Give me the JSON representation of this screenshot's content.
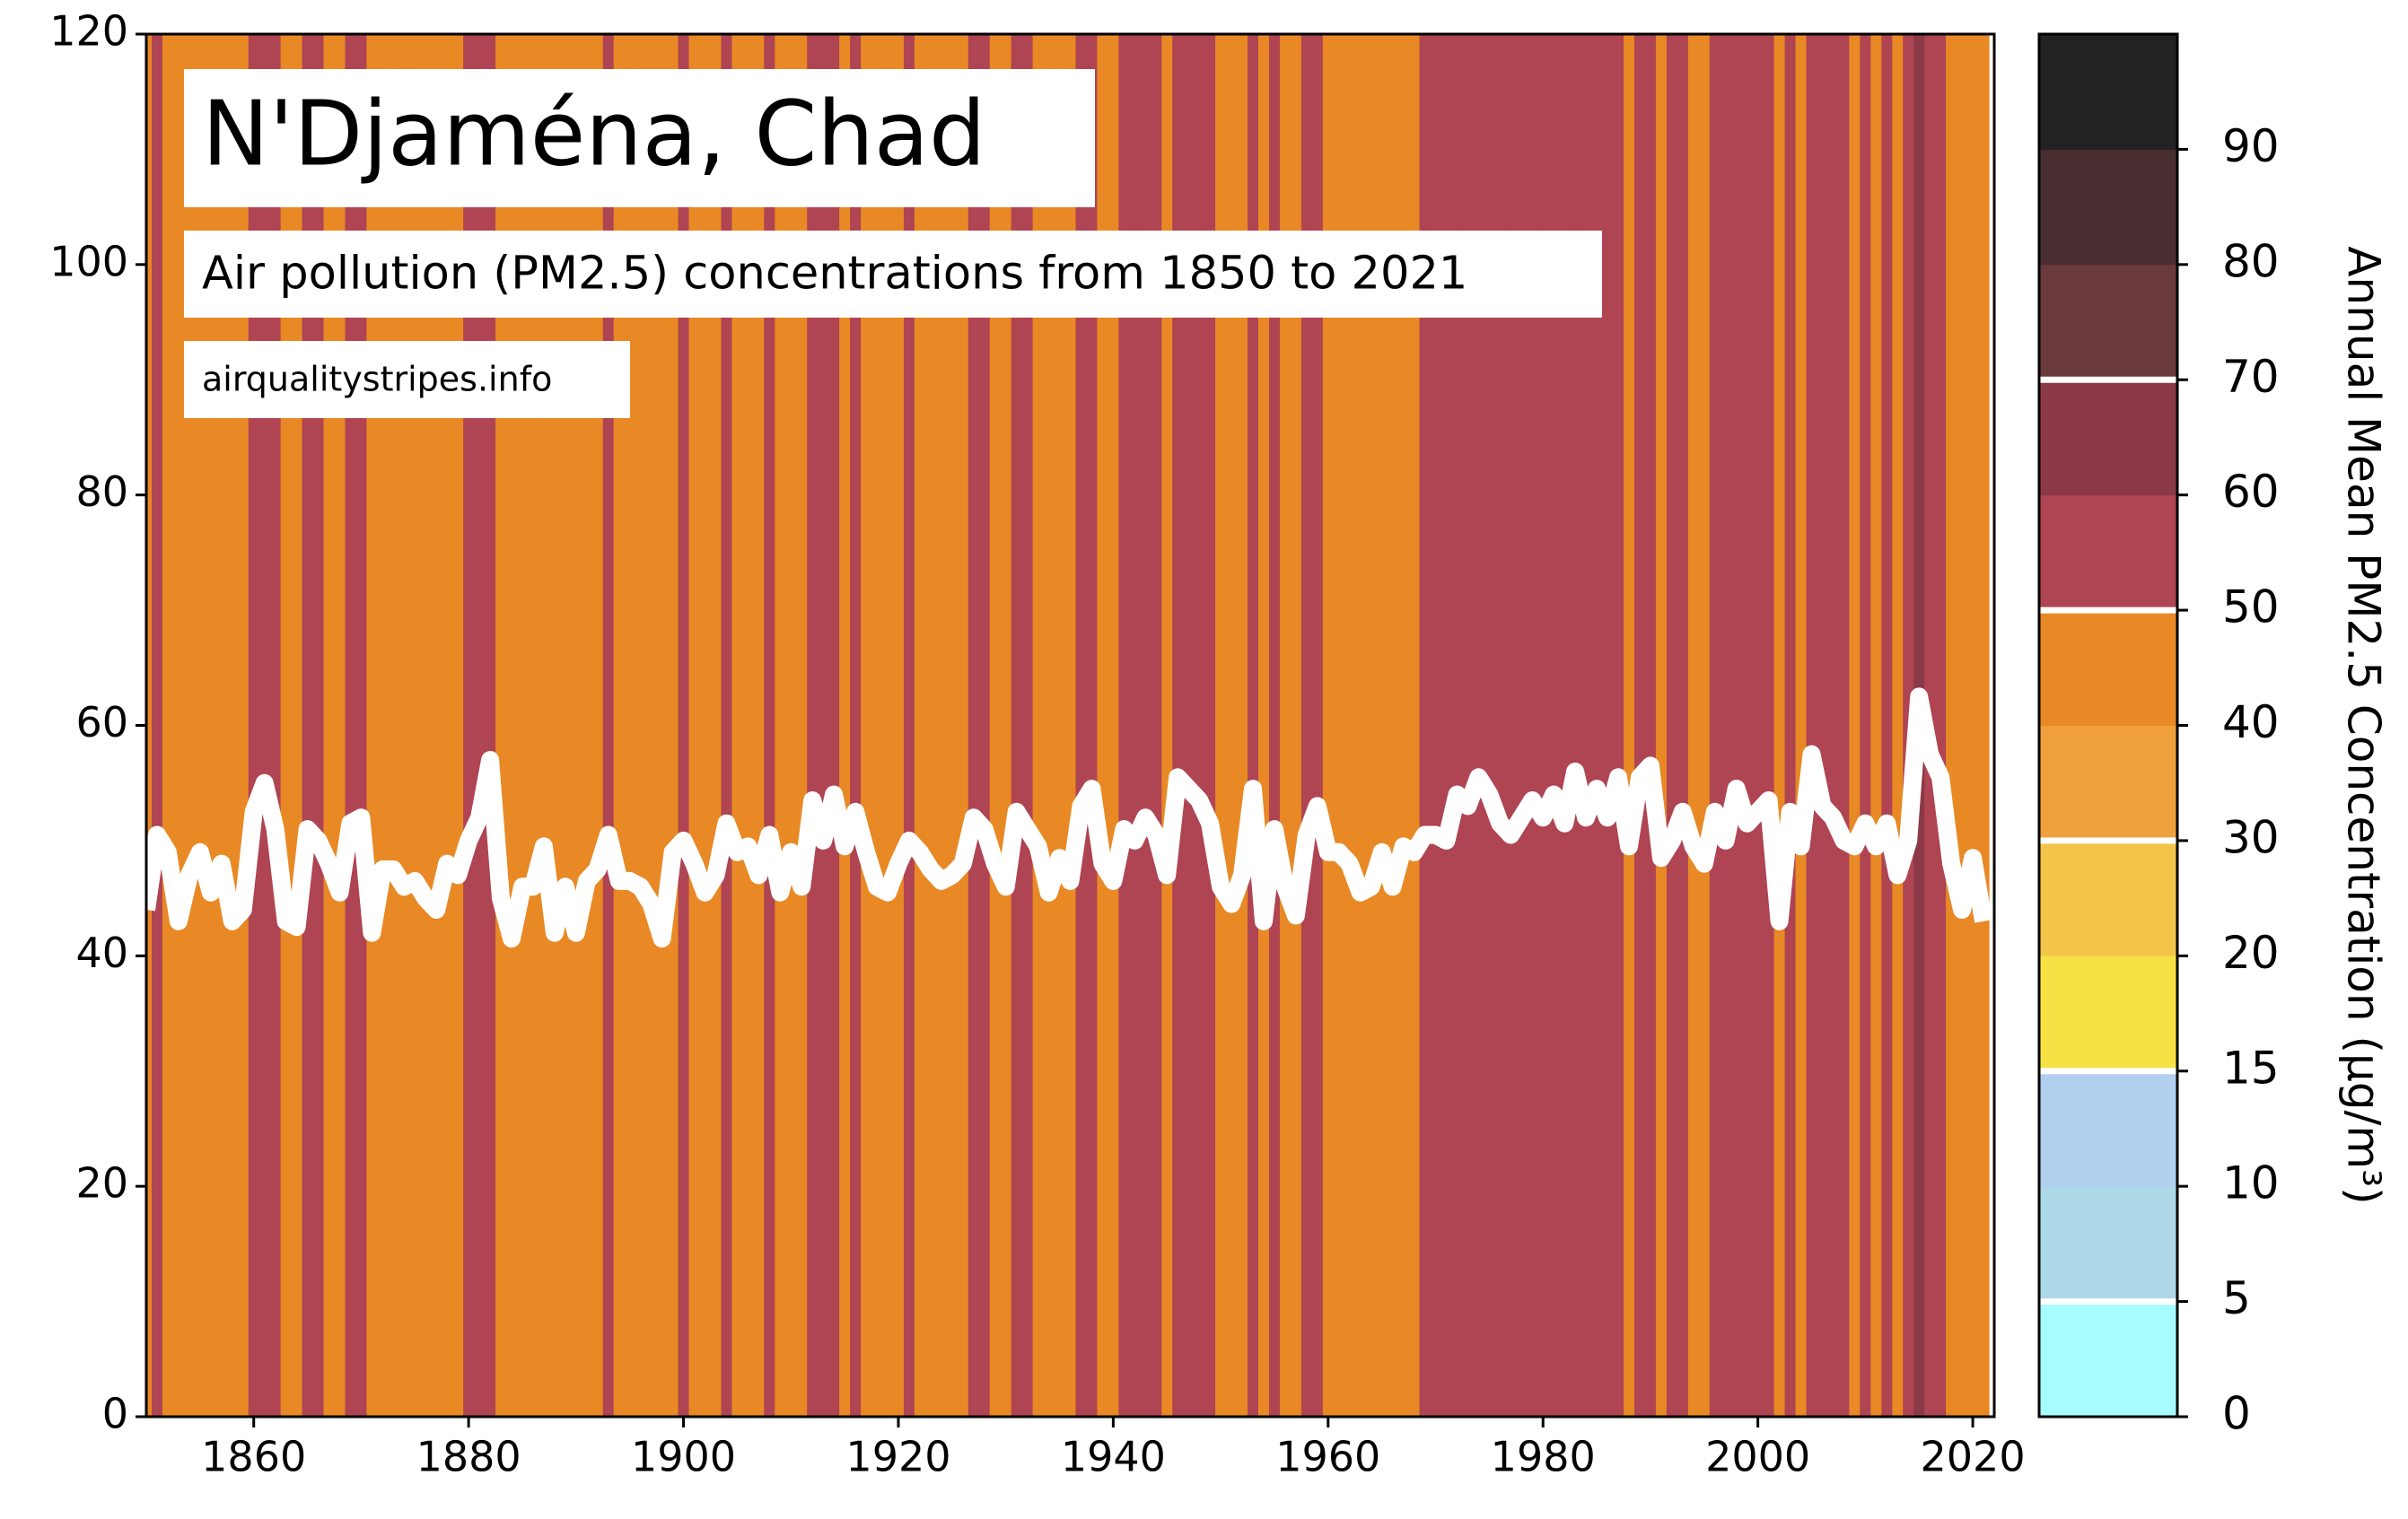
{
  "chart_data": {
    "type": "stripes",
    "title": "N'Djaména, Chad",
    "subtitle": "Air pollution (PM2.5) concentrations from 1850 to 2021",
    "source": "airqualitystripes.info",
    "colorbar_label": "Annual Mean PM2.5 Concentration (µg/m³)",
    "x": [
      1850,
      1851,
      1852,
      1853,
      1854,
      1855,
      1856,
      1857,
      1858,
      1859,
      1860,
      1861,
      1862,
      1863,
      1864,
      1865,
      1866,
      1867,
      1868,
      1869,
      1870,
      1871,
      1872,
      1873,
      1874,
      1875,
      1876,
      1877,
      1878,
      1879,
      1880,
      1881,
      1882,
      1883,
      1884,
      1885,
      1886,
      1887,
      1888,
      1889,
      1890,
      1891,
      1892,
      1893,
      1894,
      1895,
      1896,
      1897,
      1898,
      1899,
      1900,
      1901,
      1902,
      1903,
      1904,
      1905,
      1906,
      1907,
      1908,
      1909,
      1910,
      1911,
      1912,
      1913,
      1914,
      1915,
      1916,
      1917,
      1918,
      1919,
      1920,
      1921,
      1922,
      1923,
      1924,
      1925,
      1926,
      1927,
      1928,
      1929,
      1930,
      1931,
      1932,
      1933,
      1934,
      1935,
      1936,
      1937,
      1938,
      1939,
      1940,
      1941,
      1942,
      1943,
      1944,
      1945,
      1946,
      1947,
      1948,
      1949,
      1950,
      1951,
      1952,
      1953,
      1954,
      1955,
      1956,
      1957,
      1958,
      1959,
      1960,
      1961,
      1962,
      1963,
      1964,
      1965,
      1966,
      1967,
      1968,
      1969,
      1970,
      1971,
      1972,
      1973,
      1974,
      1975,
      1976,
      1977,
      1978,
      1979,
      1980,
      1981,
      1982,
      1983,
      1984,
      1985,
      1986,
      1987,
      1988,
      1989,
      1990,
      1991,
      1992,
      1993,
      1994,
      1995,
      1996,
      1997,
      1998,
      1999,
      2000,
      2001,
      2002,
      2003,
      2004,
      2005,
      2006,
      2007,
      2008,
      2009,
      2010,
      2011,
      2012,
      2013,
      2014,
      2015,
      2016,
      2017,
      2018,
      2019,
      2020,
      2021
    ],
    "values": [
      44,
      50.5,
      49,
      43,
      47,
      49,
      45.5,
      48,
      43,
      44,
      52.5,
      55,
      51,
      43,
      42.5,
      51,
      50,
      48,
      45.5,
      51.5,
      52,
      42,
      47.5,
      47.5,
      46,
      46.5,
      45,
      44,
      48,
      47,
      50,
      52,
      57,
      45,
      41.5,
      46,
      46,
      49.5,
      42,
      46,
      42,
      46.5,
      47.5,
      50.5,
      46.5,
      46.5,
      46,
      44.5,
      41.5,
      49,
      50,
      48,
      45.5,
      47,
      51.5,
      49,
      49.5,
      47,
      50.5,
      45.5,
      49,
      46,
      53.5,
      50,
      54,
      49.5,
      52.5,
      49,
      46,
      45.5,
      48,
      50,
      49,
      47.5,
      46.5,
      47,
      48,
      52,
      51,
      48,
      46,
      52.5,
      51,
      49.5,
      45.5,
      48.5,
      46.5,
      53,
      54.5,
      48,
      46.5,
      51,
      50,
      52,
      50.5,
      47,
      55.5,
      54.5,
      53.5,
      51.5,
      46,
      44.5,
      47,
      54.5,
      43,
      51,
      46,
      43.5,
      50.5,
      53,
      49,
      49,
      48,
      45.5,
      46,
      49,
      46,
      49.5,
      49,
      50.5,
      50.5,
      50,
      54,
      53,
      55.5,
      54,
      51.5,
      50.5,
      52,
      53.5,
      52,
      54,
      51.5,
      56,
      52,
      54.5,
      52,
      55.5,
      49.5,
      55.5,
      56.5,
      48.5,
      50,
      52.5,
      49.5,
      48,
      52.5,
      50,
      54.5,
      51.5,
      52.5,
      53.5,
      43,
      52.5,
      49.5,
      57.5,
      53,
      52,
      50,
      49.5,
      51.5,
      49.5,
      51.5,
      47,
      50,
      62.5,
      57.5,
      55.5,
      48,
      44,
      48.5,
      43
    ],
    "line_color": "#ffffff",
    "xlim": [
      1850,
      2022
    ],
    "ylim": [
      0,
      120
    ],
    "xticks": [
      1860,
      1880,
      1900,
      1920,
      1940,
      1960,
      1980,
      2000,
      2020
    ],
    "yticks": [
      0,
      20,
      40,
      60,
      80,
      100,
      120
    ],
    "colorbar_ticks": [
      0,
      5,
      10,
      15,
      20,
      30,
      40,
      50,
      60,
      70,
      80,
      90
    ],
    "colorbar_colors": [
      "#a6fcff",
      "#acd8e8",
      "#b1cfee",
      "#f6e244",
      "#f3c44a",
      "#f0a03c",
      "#e88925",
      "#af4452",
      "#8b3946",
      "#6b3a3c",
      "#482e30",
      "#222222"
    ],
    "colorbar_lines": [
      5,
      15,
      30,
      50,
      70
    ]
  }
}
